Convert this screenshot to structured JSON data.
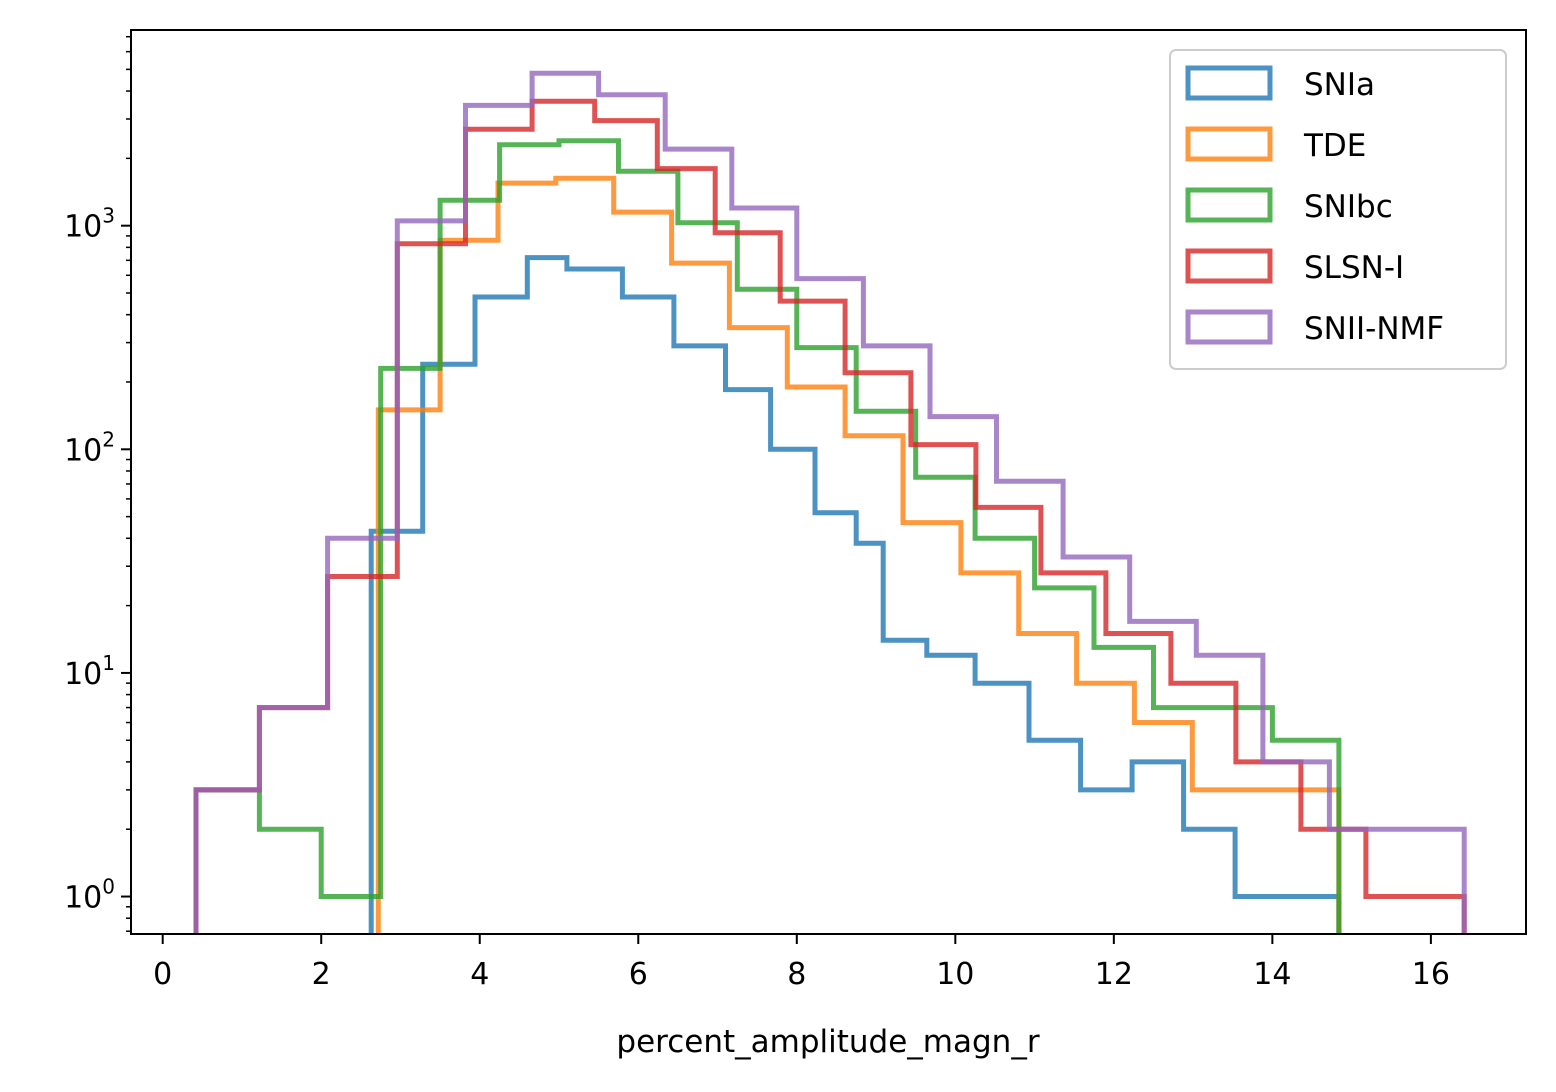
{
  "chart_data": {
    "type": "histogram-step",
    "title": "",
    "xlabel": "percent_amplitude_magn_r",
    "ylabel": "",
    "yscale": "log",
    "xlim": [
      -0.4,
      17.2
    ],
    "ylim": [
      0.68,
      7500
    ],
    "grid": false,
    "legend_position": "top-right",
    "x_ticks": [
      0,
      2,
      4,
      6,
      8,
      10,
      12,
      14,
      16
    ],
    "x_tick_labels": [
      "0",
      "2",
      "4",
      "6",
      "8",
      "10",
      "12",
      "14",
      "16"
    ],
    "y_ticks": [
      1,
      10,
      100,
      1000
    ],
    "y_tick_labels": [
      {
        "base": "10",
        "exp": "0"
      },
      {
        "base": "10",
        "exp": "1"
      },
      {
        "base": "10",
        "exp": "2"
      },
      {
        "base": "10",
        "exp": "3"
      }
    ],
    "series": [
      {
        "name": "SNIa",
        "color": "#1f77b4",
        "edges": [
          2.63,
          2.82,
          3.28,
          3.94,
          4.6,
          5.1,
          5.45,
          5.8,
          6.45,
          7.1,
          7.67,
          8.23,
          8.75,
          9.09,
          9.64,
          10.25,
          10.93,
          11.58,
          12.23,
          12.88,
          13.21,
          13.53,
          14.19,
          14.84
        ],
        "counts": [
          43,
          43,
          240,
          480,
          720,
          640,
          640,
          480,
          290,
          185,
          100,
          52,
          38,
          14,
          12,
          9,
          5,
          3,
          4,
          2,
          2,
          1,
          1
        ]
      },
      {
        "name": "TDE",
        "color": "#ff7f0e",
        "edges": [
          2.72,
          3.5,
          4.23,
          4.96,
          5.69,
          6.42,
          7.15,
          7.88,
          8.61,
          9.34,
          10.07,
          10.8,
          11.53,
          12.26,
          12.99,
          13.72,
          14.45,
          14.84
        ],
        "counts": [
          150,
          860,
          1550,
          1630,
          1150,
          680,
          350,
          190,
          115,
          47,
          28,
          15,
          9,
          6,
          3,
          3,
          3
        ]
      },
      {
        "name": "SNIbc",
        "color": "#2ca02c",
        "edges": [
          0.42,
          1.22,
          2.0,
          2.75,
          3.5,
          4.25,
          5.0,
          5.75,
          6.5,
          7.25,
          8.0,
          8.75,
          9.5,
          10.25,
          11.0,
          11.75,
          12.5,
          13.25,
          14.0,
          14.84
        ],
        "counts": [
          3,
          2,
          1,
          230,
          1300,
          2300,
          2400,
          1750,
          1030,
          520,
          285,
          148,
          75,
          40,
          24,
          13,
          7,
          7,
          5
        ]
      },
      {
        "name": "SLSN-I",
        "color": "#d62728",
        "edges": [
          0.42,
          1.22,
          2.08,
          2.96,
          3.82,
          4.66,
          5.45,
          6.24,
          6.97,
          7.79,
          8.61,
          9.44,
          10.26,
          11.08,
          11.9,
          12.72,
          13.54,
          14.36,
          15.18,
          16.0,
          16.42
        ],
        "counts": [
          3,
          7,
          27,
          830,
          2700,
          3600,
          2950,
          1800,
          930,
          460,
          220,
          105,
          55,
          28,
          15,
          9,
          4,
          2,
          1,
          1
        ]
      },
      {
        "name": "SNII-NMF",
        "color": "#9467bd",
        "edges": [
          0.42,
          1.22,
          2.08,
          2.96,
          3.82,
          4.66,
          5.5,
          6.34,
          7.18,
          8.0,
          8.84,
          9.68,
          10.52,
          11.36,
          12.2,
          13.04,
          13.88,
          14.72,
          15.56,
          16.42
        ],
        "counts": [
          3,
          7,
          40,
          1050,
          3450,
          4800,
          3850,
          2200,
          1200,
          580,
          290,
          140,
          72,
          33,
          17,
          12,
          4,
          2,
          2
        ]
      }
    ]
  }
}
